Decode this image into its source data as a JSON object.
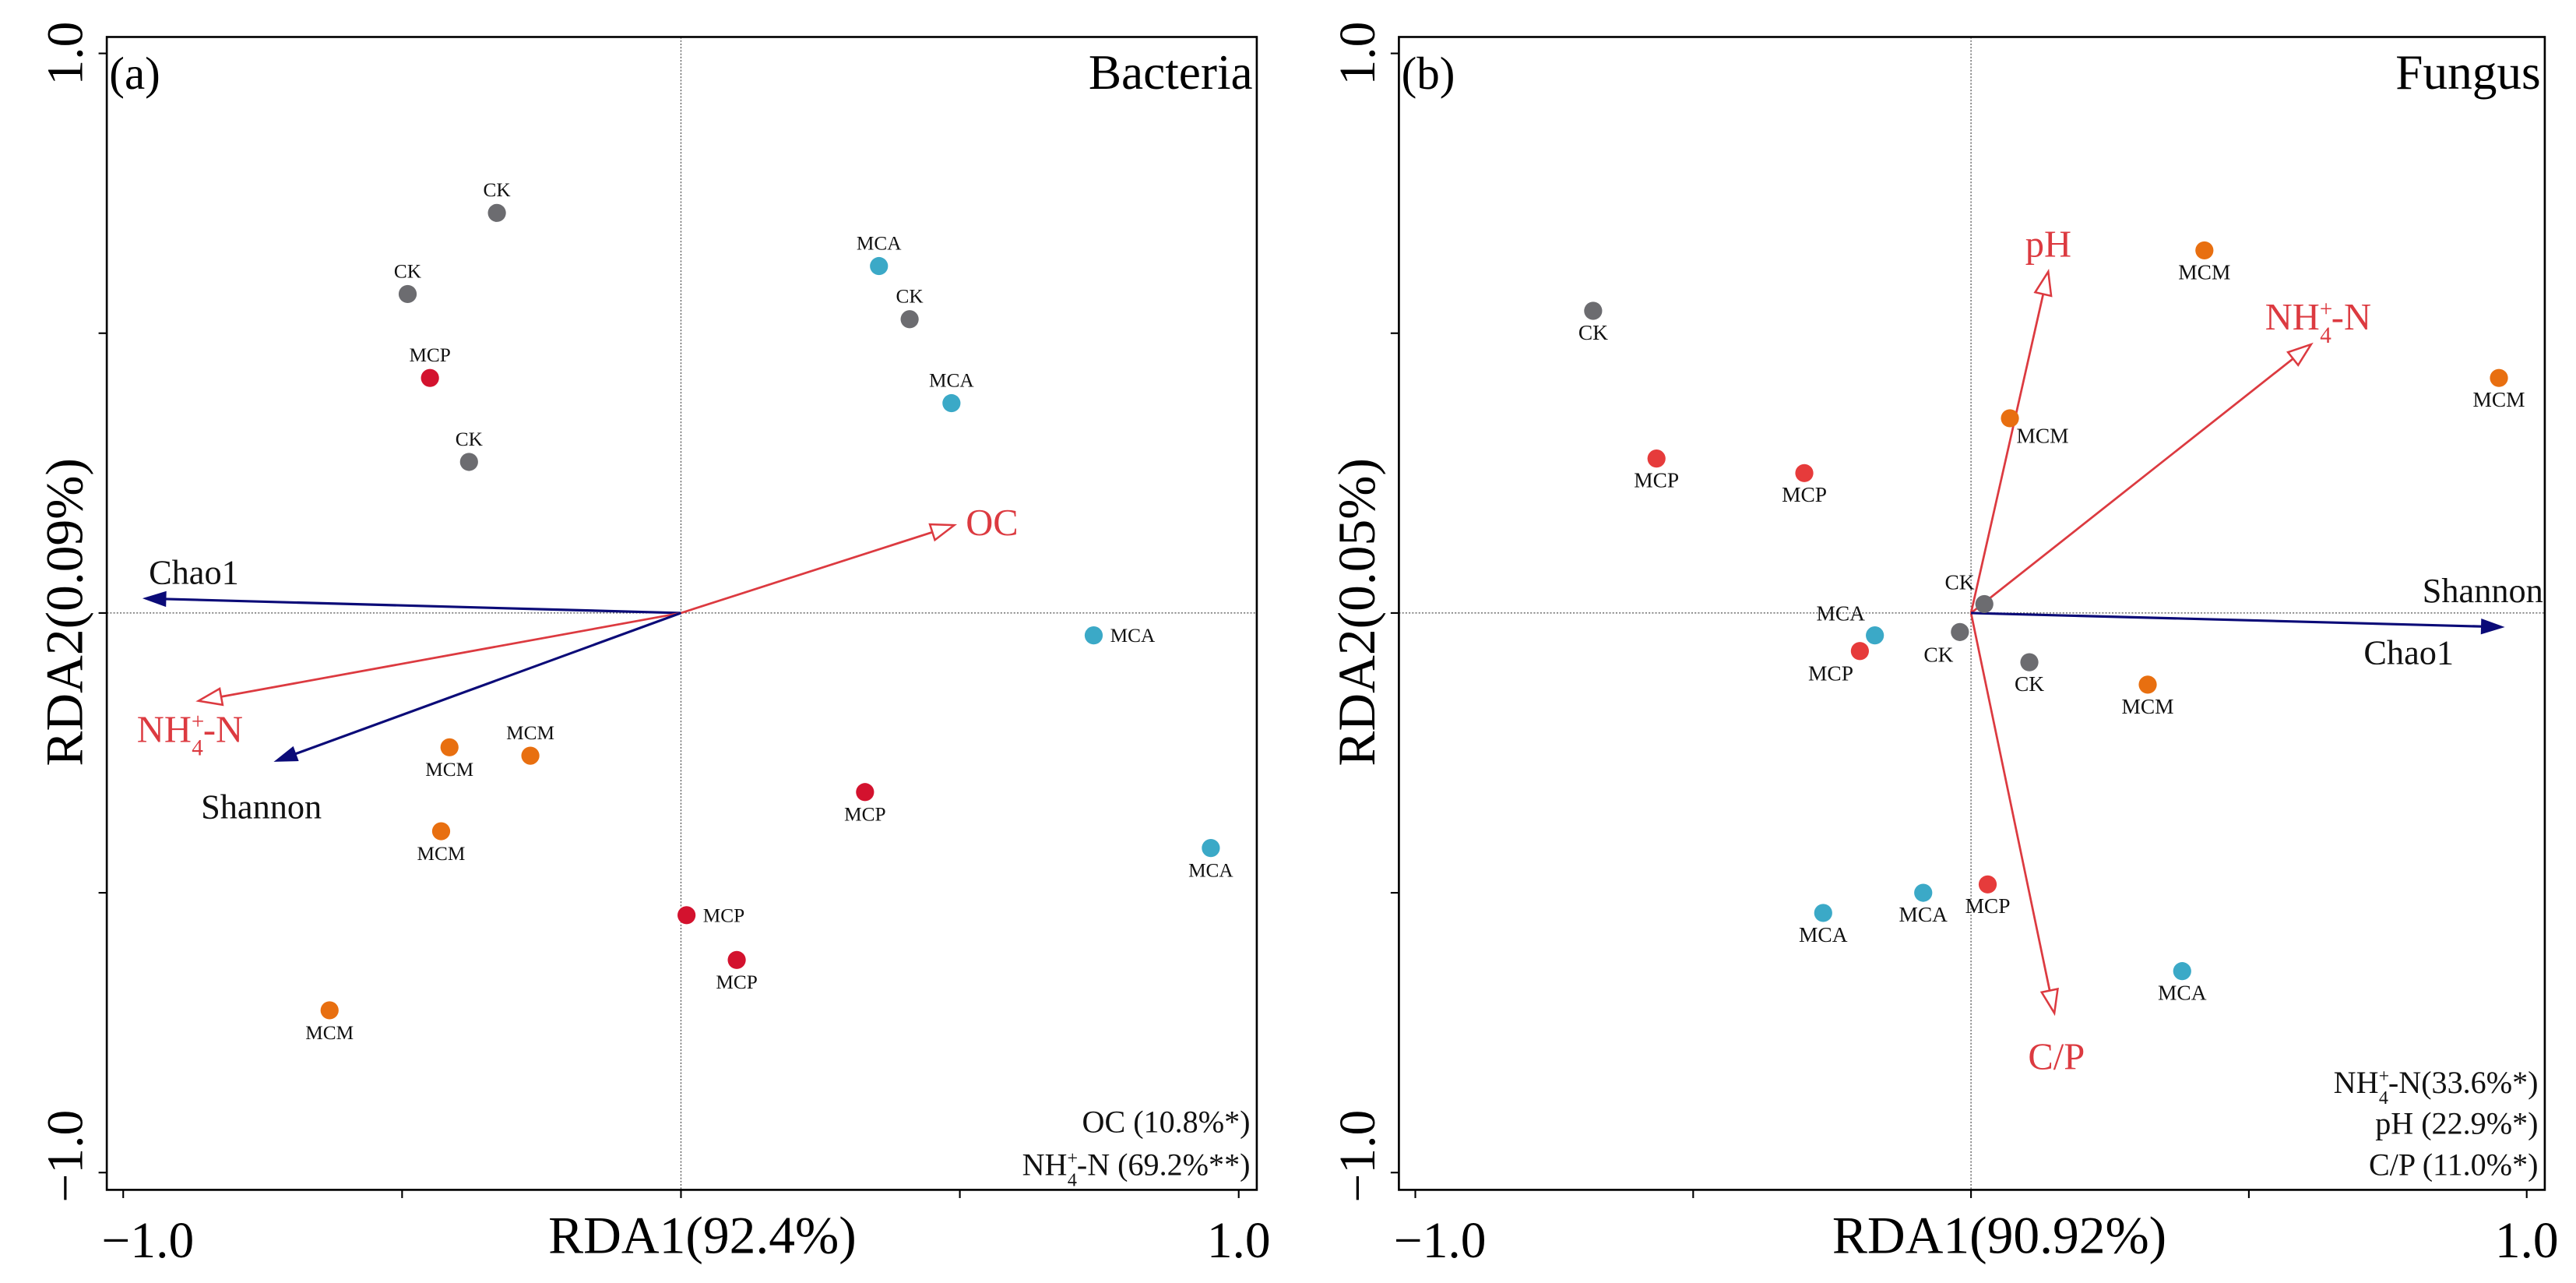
{
  "colors": {
    "CK": "#6c6c70",
    "MCP_a": "#d3122e",
    "MCP_b": "#e63b3b",
    "MCA": "#3ba9c7",
    "MCM": "#e86f10",
    "env_arrow": "#dc3a40",
    "diversity_arrow": "#0b0b78"
  },
  "chart_data": [
    {
      "type": "scatter",
      "panel_label": "(a)",
      "title": "Bacteria",
      "xlabel": "RDA1(92.4%)",
      "ylabel": "RDA2(0.09%)",
      "xlim": [
        -1.0,
        1.0
      ],
      "ylim": [
        -1.0,
        1.0
      ],
      "x_tick_labels": [
        "−1.0",
        "1.0"
      ],
      "y_tick_labels": [
        "1.0",
        "−1.0"
      ],
      "points": [
        {
          "group": "CK",
          "x": -0.33,
          "y": 0.715,
          "label_pos": "above"
        },
        {
          "group": "CK",
          "x": -0.49,
          "y": 0.57,
          "label_pos": "above"
        },
        {
          "group": "MCP",
          "x": -0.45,
          "y": 0.42,
          "label_pos": "above"
        },
        {
          "group": "CK",
          "x": -0.38,
          "y": 0.27,
          "label_pos": "above"
        },
        {
          "group": "MCA",
          "x": 0.355,
          "y": 0.62,
          "label_pos": "above"
        },
        {
          "group": "CK",
          "x": 0.41,
          "y": 0.525,
          "label_pos": "above"
        },
        {
          "group": "MCA",
          "x": 0.485,
          "y": 0.375,
          "label_pos": "above"
        },
        {
          "group": "MCA",
          "x": 0.74,
          "y": -0.04,
          "label_pos": "right"
        },
        {
          "group": "MCA",
          "x": 0.95,
          "y": -0.42,
          "label_pos": "below"
        },
        {
          "group": "MCP",
          "x": 0.33,
          "y": -0.32,
          "label_pos": "below"
        },
        {
          "group": "MCP",
          "x": 0.01,
          "y": -0.54,
          "label_pos": "right"
        },
        {
          "group": "MCP",
          "x": 0.1,
          "y": -0.62,
          "label_pos": "below"
        },
        {
          "group": "MCM",
          "x": -0.415,
          "y": -0.24,
          "label_pos": "below"
        },
        {
          "group": "MCM",
          "x": -0.27,
          "y": -0.255,
          "label_pos": "above"
        },
        {
          "group": "MCM",
          "x": -0.43,
          "y": -0.39,
          "label_pos": "below"
        },
        {
          "group": "MCM",
          "x": -0.63,
          "y": -0.71,
          "label_pos": "below"
        }
      ],
      "arrows": [
        {
          "name": "OC",
          "kind": "env",
          "x": 0.49,
          "y": 0.157
        },
        {
          "name": "Chao1",
          "kind": "diversity",
          "x": -0.96,
          "y": 0.026
        },
        {
          "name": "NH4+-N",
          "kind": "env",
          "x": -0.865,
          "y": -0.157
        },
        {
          "name": "Shannon",
          "kind": "diversity",
          "x": -0.725,
          "y": -0.264
        }
      ],
      "stats": [
        "OC (10.8%*)",
        "NH4+-N (69.2%**)"
      ]
    },
    {
      "type": "scatter",
      "panel_label": "(b)",
      "title": "Fungus",
      "xlabel": "RDA1(90.92%)",
      "ylabel": "RDA2(0.05%)",
      "xlim": [
        -1.0,
        1.0
      ],
      "ylim": [
        -1.0,
        1.0
      ],
      "x_tick_labels": [
        "−1.0",
        "1.0"
      ],
      "y_tick_labels": [
        "1.0",
        "−1.0"
      ],
      "points": [
        {
          "group": "CK",
          "x": -0.68,
          "y": 0.54,
          "label_pos": "below"
        },
        {
          "group": "MCP",
          "x": -0.566,
          "y": 0.276,
          "label_pos": "below"
        },
        {
          "group": "MCP",
          "x": -0.3,
          "y": 0.25,
          "label_pos": "below"
        },
        {
          "group": "MCM",
          "x": 0.42,
          "y": 0.648,
          "label_pos": "below"
        },
        {
          "group": "MCM",
          "x": 0.07,
          "y": 0.348,
          "label_pos": "belowright"
        },
        {
          "group": "MCM",
          "x": 0.95,
          "y": 0.42,
          "label_pos": "below"
        },
        {
          "group": "CK",
          "x": 0.024,
          "y": 0.016,
          "label_pos": "aboveleft"
        },
        {
          "group": "CK",
          "x": -0.02,
          "y": -0.034,
          "label_pos": "belowleft"
        },
        {
          "group": "CK",
          "x": 0.105,
          "y": -0.088,
          "label_pos": "below"
        },
        {
          "group": "MCA",
          "x": -0.173,
          "y": -0.04,
          "label_pos": "aboveleft"
        },
        {
          "group": "MCP",
          "x": -0.2,
          "y": -0.068,
          "label_pos": "belowleft"
        },
        {
          "group": "MCM",
          "x": 0.318,
          "y": -0.128,
          "label_pos": "below"
        },
        {
          "group": "MCA",
          "x": -0.266,
          "y": -0.536,
          "label_pos": "below"
        },
        {
          "group": "MCA",
          "x": -0.086,
          "y": -0.5,
          "label_pos": "below"
        },
        {
          "group": "MCP",
          "x": 0.03,
          "y": -0.485,
          "label_pos": "below"
        },
        {
          "group": "MCA",
          "x": 0.38,
          "y": -0.64,
          "label_pos": "below"
        }
      ],
      "arrows": [
        {
          "name": "pH",
          "kind": "env",
          "x": 0.139,
          "y": 0.61
        },
        {
          "name": "NH4+-N",
          "kind": "env",
          "x": 0.612,
          "y": 0.48
        },
        {
          "name": "C/P",
          "kind": "env",
          "x": 0.15,
          "y": -0.715
        },
        {
          "name": "Shannon",
          "kind": "diversity",
          "x": 0.955,
          "y": -0.025
        },
        {
          "name": "Chao1",
          "kind": "diversity",
          "x": 0.955,
          "y": -0.025
        }
      ],
      "stats": [
        "NH4+-N(33.6%*)",
        "pH (22.9%*)",
        "C/P (11.0%*)"
      ]
    }
  ]
}
